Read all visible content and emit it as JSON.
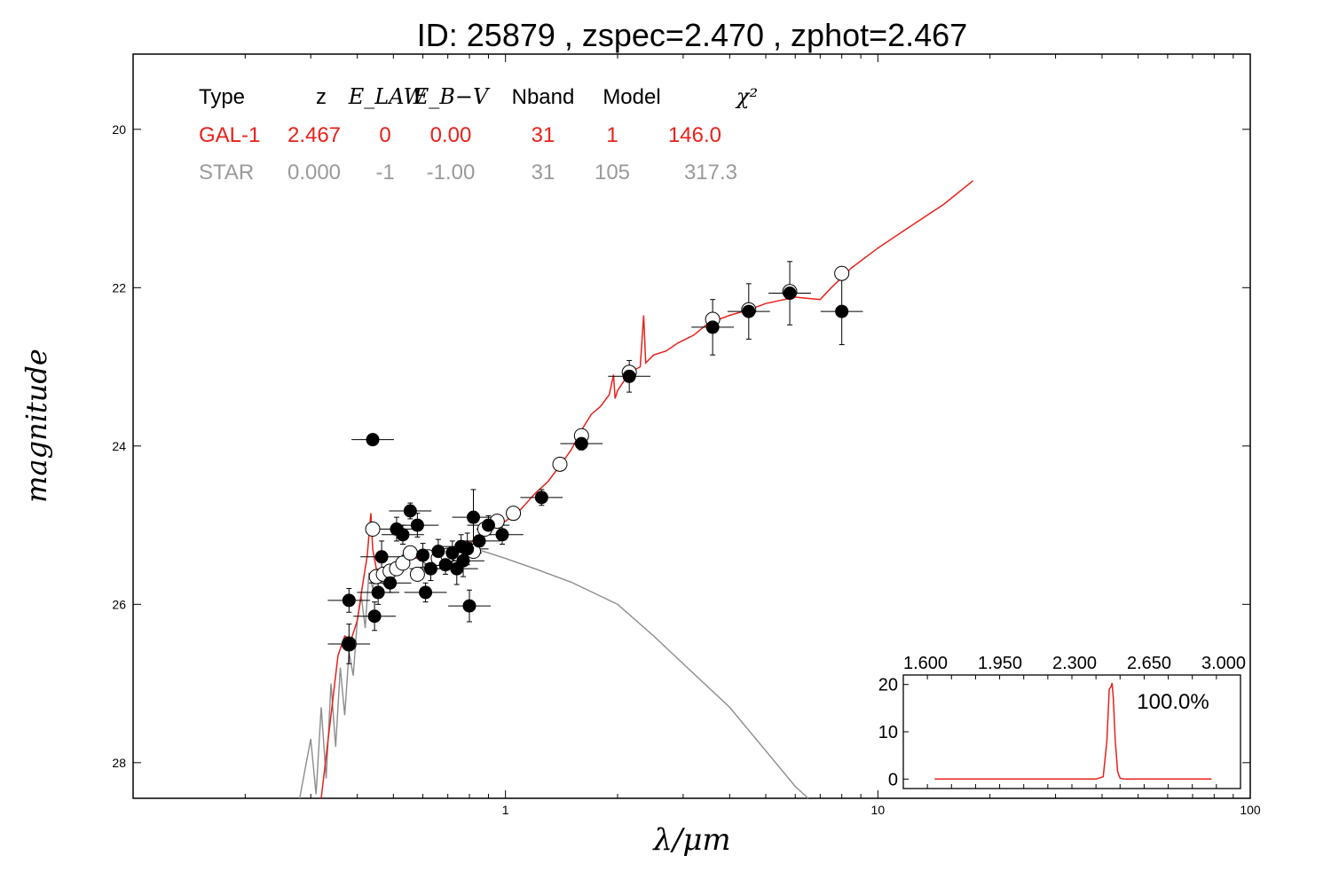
{
  "chart_data": {
    "type": "scatter",
    "title": "ID:  25879 , zspec=2.470 , zphot=2.467",
    "xlabel": "λ/μm",
    "ylabel": "magnitude",
    "x_scale": "log",
    "xlim": [
      0.1,
      100
    ],
    "ylim": [
      28.45,
      19.05
    ],
    "y_inverted": true,
    "x_ticks": [
      1,
      10,
      100
    ],
    "y_ticks": [
      20,
      22,
      24,
      26,
      28
    ],
    "fit_table": {
      "headers": [
        "Type",
        "z",
        "E_LAW",
        "E_B−V",
        "Nband",
        "Model",
        "χ²"
      ],
      "rows": [
        {
          "color": "#e8211b",
          "values": [
            "GAL-1",
            "2.467",
            "0",
            "0.00",
            "31",
            "1",
            "146.0"
          ]
        },
        {
          "color": "#9a9a9a",
          "values": [
            "STAR",
            "0.000",
            "-1",
            "-1.00",
            "31",
            "105",
            "317.3"
          ]
        }
      ]
    },
    "galaxy_model_color": "#e8211b",
    "star_model_color": "#8c8c8c",
    "galaxy_model": [
      [
        0.32,
        28.6
      ],
      [
        0.34,
        27.4
      ],
      [
        0.355,
        26.65
      ],
      [
        0.37,
        26.4
      ],
      [
        0.385,
        26.45
      ],
      [
        0.4,
        26.2
      ],
      [
        0.415,
        25.7
      ],
      [
        0.425,
        25.4
      ],
      [
        0.435,
        24.85
      ],
      [
        0.44,
        25.3
      ],
      [
        0.45,
        25.55
      ],
      [
        0.47,
        25.6
      ],
      [
        0.49,
        25.55
      ],
      [
        0.52,
        25.45
      ],
      [
        0.55,
        25.4
      ],
      [
        0.58,
        25.42
      ],
      [
        0.62,
        25.4
      ],
      [
        0.66,
        25.38
      ],
      [
        0.7,
        25.35
      ],
      [
        0.74,
        25.3
      ],
      [
        0.78,
        25.25
      ],
      [
        0.82,
        25.2
      ],
      [
        0.86,
        25.1
      ],
      [
        0.9,
        25.05
      ],
      [
        0.95,
        25.0
      ],
      [
        1.0,
        24.95
      ],
      [
        1.1,
        24.8
      ],
      [
        1.2,
        24.6
      ],
      [
        1.3,
        24.45
      ],
      [
        1.4,
        24.25
      ],
      [
        1.5,
        24.05
      ],
      [
        1.6,
        23.8
      ],
      [
        1.7,
        23.6
      ],
      [
        1.8,
        23.5
      ],
      [
        1.9,
        23.35
      ],
      [
        1.95,
        23.1
      ],
      [
        1.97,
        23.4
      ],
      [
        2.0,
        23.3
      ],
      [
        2.1,
        23.15
      ],
      [
        2.2,
        23.05
      ],
      [
        2.3,
        23.0
      ],
      [
        2.35,
        22.35
      ],
      [
        2.38,
        22.95
      ],
      [
        2.5,
        22.85
      ],
      [
        2.7,
        22.8
      ],
      [
        2.9,
        22.7
      ],
      [
        3.2,
        22.6
      ],
      [
        3.5,
        22.45
      ],
      [
        4.0,
        22.35
      ],
      [
        4.5,
        22.28
      ],
      [
        5.0,
        22.2
      ],
      [
        6.0,
        22.12
      ],
      [
        7.0,
        22.15
      ],
      [
        7.5,
        22.0
      ],
      [
        8.5,
        21.75
      ],
      [
        10,
        21.5
      ],
      [
        12,
        21.25
      ],
      [
        15,
        20.95
      ],
      [
        18,
        20.65
      ]
    ],
    "star_model": [
      [
        0.28,
        28.5
      ],
      [
        0.3,
        27.7
      ],
      [
        0.31,
        28.4
      ],
      [
        0.32,
        27.3
      ],
      [
        0.33,
        28.2
      ],
      [
        0.34,
        27.0
      ],
      [
        0.35,
        27.8
      ],
      [
        0.36,
        26.8
      ],
      [
        0.37,
        27.4
      ],
      [
        0.38,
        26.6
      ],
      [
        0.39,
        26.9
      ],
      [
        0.4,
        26.2
      ],
      [
        0.41,
        25.9
      ],
      [
        0.42,
        26.3
      ],
      [
        0.43,
        25.6
      ],
      [
        0.44,
        25.8
      ],
      [
        0.45,
        25.55
      ],
      [
        0.47,
        25.75
      ],
      [
        0.5,
        25.5
      ],
      [
        0.55,
        25.4
      ],
      [
        0.6,
        25.35
      ],
      [
        0.7,
        25.3
      ],
      [
        0.8,
        25.28
      ],
      [
        0.9,
        25.35
      ],
      [
        1.0,
        25.42
      ],
      [
        1.2,
        25.55
      ],
      [
        1.5,
        25.72
      ],
      [
        2.0,
        26.0
      ],
      [
        2.5,
        26.4
      ],
      [
        3.0,
        26.75
      ],
      [
        4.0,
        27.3
      ],
      [
        5.0,
        27.85
      ],
      [
        6.0,
        28.3
      ],
      [
        6.5,
        28.5
      ]
    ],
    "observed_points": [
      {
        "x": 0.38,
        "y": 26.5,
        "yerr": 0.25
      },
      {
        "x": 0.38,
        "y": 25.95,
        "yerr": 0.15
      },
      {
        "x": 0.44,
        "y": 23.92,
        "yerr": 0.05
      },
      {
        "x": 0.445,
        "y": 26.15,
        "yerr": 0.18
      },
      {
        "x": 0.455,
        "y": 25.85,
        "yerr": 0.15
      },
      {
        "x": 0.465,
        "y": 25.4,
        "yerr": 0.2
      },
      {
        "x": 0.49,
        "y": 25.73,
        "yerr": 0.12
      },
      {
        "x": 0.51,
        "y": 25.05,
        "yerr": 0.15
      },
      {
        "x": 0.53,
        "y": 25.12,
        "yerr": 0.12
      },
      {
        "x": 0.555,
        "y": 24.82,
        "yerr": 0.1
      },
      {
        "x": 0.58,
        "y": 25.0,
        "yerr": 0.15
      },
      {
        "x": 0.6,
        "y": 25.38,
        "yerr": 0.15
      },
      {
        "x": 0.61,
        "y": 25.85,
        "yerr": 0.12
      },
      {
        "x": 0.63,
        "y": 25.55,
        "yerr": 0.15
      },
      {
        "x": 0.66,
        "y": 25.33,
        "yerr": 0.15
      },
      {
        "x": 0.69,
        "y": 25.5,
        "yerr": 0.12
      },
      {
        "x": 0.72,
        "y": 25.35,
        "yerr": 0.15
      },
      {
        "x": 0.74,
        "y": 25.55,
        "yerr": 0.2
      },
      {
        "x": 0.76,
        "y": 25.27,
        "yerr": 0.15
      },
      {
        "x": 0.77,
        "y": 25.45,
        "yerr": 0.2
      },
      {
        "x": 0.79,
        "y": 25.3,
        "yerr": 0.2
      },
      {
        "x": 0.8,
        "y": 26.02,
        "yerr": 0.2
      },
      {
        "x": 0.82,
        "y": 24.9,
        "yerr": 0.35
      },
      {
        "x": 0.85,
        "y": 25.2,
        "yerr": 0.15
      },
      {
        "x": 0.9,
        "y": 25.0,
        "yerr": 0.12
      },
      {
        "x": 0.98,
        "y": 25.12,
        "yerr": 0.12
      },
      {
        "x": 1.25,
        "y": 24.65,
        "yerr": 0.1
      },
      {
        "x": 1.6,
        "y": 23.97,
        "yerr": 0.08
      },
      {
        "x": 2.15,
        "y": 23.12,
        "yerr": 0.2
      },
      {
        "x": 3.6,
        "y": 22.5,
        "yerr": 0.35
      },
      {
        "x": 4.5,
        "y": 22.3,
        "yerr": 0.35
      },
      {
        "x": 5.8,
        "y": 22.07,
        "yerr": 0.4
      },
      {
        "x": 8.0,
        "y": 22.3,
        "yerr": 0.42
      }
    ],
    "model_points": [
      {
        "x": 0.38,
        "y": 26.5
      },
      {
        "x": 0.44,
        "y": 25.05
      },
      {
        "x": 0.45,
        "y": 25.65
      },
      {
        "x": 0.47,
        "y": 25.62
      },
      {
        "x": 0.49,
        "y": 25.58
      },
      {
        "x": 0.51,
        "y": 25.55
      },
      {
        "x": 0.53,
        "y": 25.48
      },
      {
        "x": 0.555,
        "y": 25.35
      },
      {
        "x": 0.58,
        "y": 25.62
      },
      {
        "x": 0.62,
        "y": 25.4
      },
      {
        "x": 0.66,
        "y": 25.42
      },
      {
        "x": 0.7,
        "y": 25.38
      },
      {
        "x": 0.74,
        "y": 25.36
      },
      {
        "x": 0.79,
        "y": 25.3
      },
      {
        "x": 0.82,
        "y": 25.33
      },
      {
        "x": 0.88,
        "y": 25.05
      },
      {
        "x": 0.95,
        "y": 24.95
      },
      {
        "x": 1.05,
        "y": 24.85
      },
      {
        "x": 1.4,
        "y": 24.23
      },
      {
        "x": 1.6,
        "y": 23.87
      },
      {
        "x": 2.15,
        "y": 23.07
      },
      {
        "x": 3.6,
        "y": 22.4
      },
      {
        "x": 4.5,
        "y": 22.28
      },
      {
        "x": 5.8,
        "y": 22.05
      },
      {
        "x": 8.0,
        "y": 21.82
      }
    ],
    "inset": {
      "type": "line",
      "label": "100.0%",
      "x_ticks": [
        "1.600",
        "1.950",
        "2.300",
        "2.650",
        "3.000"
      ],
      "y_ticks": [
        "0",
        "10",
        "20"
      ],
      "xlim": [
        1.6,
        3.0
      ],
      "ylim": [
        -2,
        22
      ],
      "color": "#e8211b",
      "pdz": [
        [
          1.73,
          0
        ],
        [
          2.4,
          0
        ],
        [
          2.43,
          0.5
        ],
        [
          2.445,
          8
        ],
        [
          2.455,
          19
        ],
        [
          2.462,
          19.5
        ],
        [
          2.467,
          20.3
        ],
        [
          2.472,
          17
        ],
        [
          2.48,
          8
        ],
        [
          2.49,
          1.5
        ],
        [
          2.5,
          0.2
        ],
        [
          2.52,
          0
        ],
        [
          2.88,
          0
        ]
      ]
    }
  }
}
